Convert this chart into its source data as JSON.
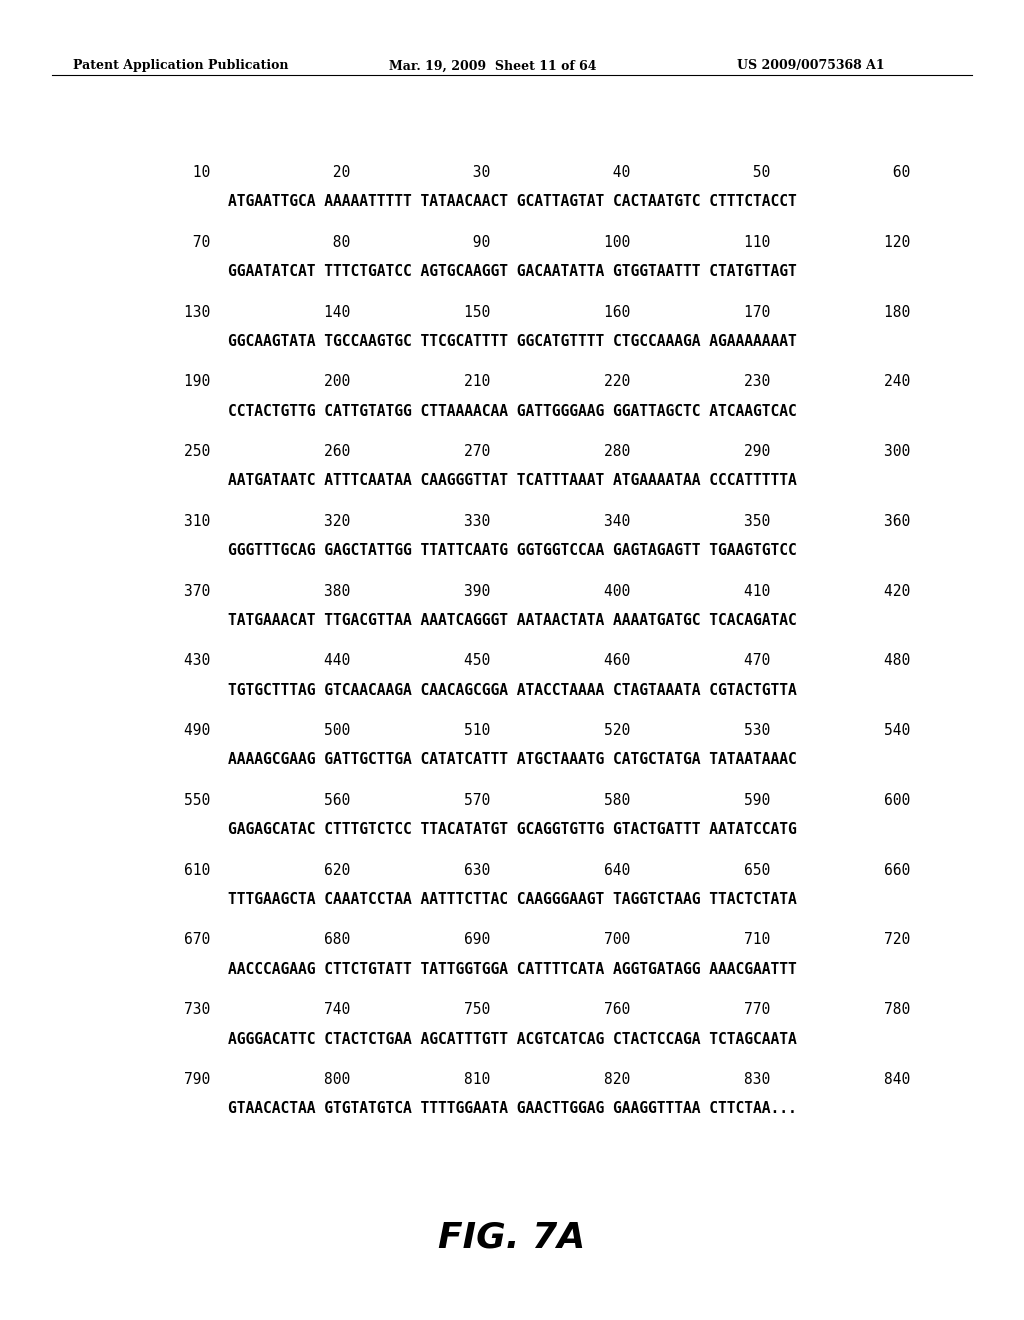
{
  "header_left": "Patent Application Publication",
  "header_mid": "Mar. 19, 2009  Sheet 11 of 64",
  "header_right": "US 2009/0075368 A1",
  "figure_label": "FIG. 7A",
  "background_color": "#ffffff",
  "text_color": "#000000",
  "rows": [
    {
      "numbers": "         10              20              30              40              50              60",
      "sequence": "ATGAATTGCA AAAAATTTTT TATAACAACT GCATTAGTAT CACTAATGTC CTTTCTACCT"
    },
    {
      "numbers": "         70              80              90             100             110             120",
      "sequence": "GGAATATCAT TTTCTGATCC AGTGCAAGGT GACAATATTA GTGGTAATTT CTATGTTAGT"
    },
    {
      "numbers": "        130             140             150             160             170             180",
      "sequence": "GGCAAGTATA TGCCAAGTGC TTCGCATTTT GGCATGTTTT CTGCCAAAGA AGAAAAAAAT"
    },
    {
      "numbers": "        190             200             210             220             230             240",
      "sequence": "CCTACTGTTG CATTGTATGG CTTAAAACAA GATTGGGAAG GGATTAGCTC ATCAAGTCAC"
    },
    {
      "numbers": "        250             260             270             280             290             300",
      "sequence": "AATGATAATC ATTTCAATAA CAAGGGTTAT TCATTTAAAT ATGAAAATAA CCCATTTTTA"
    },
    {
      "numbers": "        310             320             330             340             350             360",
      "sequence": "GGGTTTGCAG GAGCTATTGG TTATTCAATG GGTGGTCCAA GAGTAGAGTT TGAAGTGTCC"
    },
    {
      "numbers": "        370             380             390             400             410             420",
      "sequence": "TATGAAACAT TTGACGTTAA AAATCAGGGT AATAACTATA AAAATGATGC TCACAGATAC"
    },
    {
      "numbers": "        430             440             450             460             470             480",
      "sequence": "TGTGCTTTAG GTCAACAAGA CAACAGCGGA ATACCTAAAA CTAGTAAATA CGTACTGTTA"
    },
    {
      "numbers": "        490             500             510             520             530             540",
      "sequence": "AAAAGCGAAG GATTGCTTGA CATATCATTT ATGCTAAATG CATGCTATGA TATAATAAAC"
    },
    {
      "numbers": "        550             560             570             580             590             600",
      "sequence": "GAGAGCATAC CTTTGTCTCC TTACATATGT GCAGGTGTTG GTACTGATTT AATATCCATG"
    },
    {
      "numbers": "        610             620             630             640             650             660",
      "sequence": "TTTGAAGCTA CAAATCCTAA AATTTCTTAC CAAGGGAAGT TAGGTCTAAG TTACTCTATA"
    },
    {
      "numbers": "        670             680             690             700             710             720",
      "sequence": "AACCCAGAAG CTTCTGTATT TATTGGTGGA CATTTTCATA AGGTGATAGG AAACGAATTT"
    },
    {
      "numbers": "        730             740             750             760             770             780",
      "sequence": "AGGGACATTC CTACTCTGAA AGCATTTGTT ACGTCATCAG CTACTCCAGA TCTAGCAATA"
    },
    {
      "numbers": "        790             800             810             820             830             840",
      "sequence": "GTAACACTAA GTGTATGTCA TTTTGGAATA GAACTTGGAG GAAGGTTTAA CTTCTAA..."
    }
  ]
}
